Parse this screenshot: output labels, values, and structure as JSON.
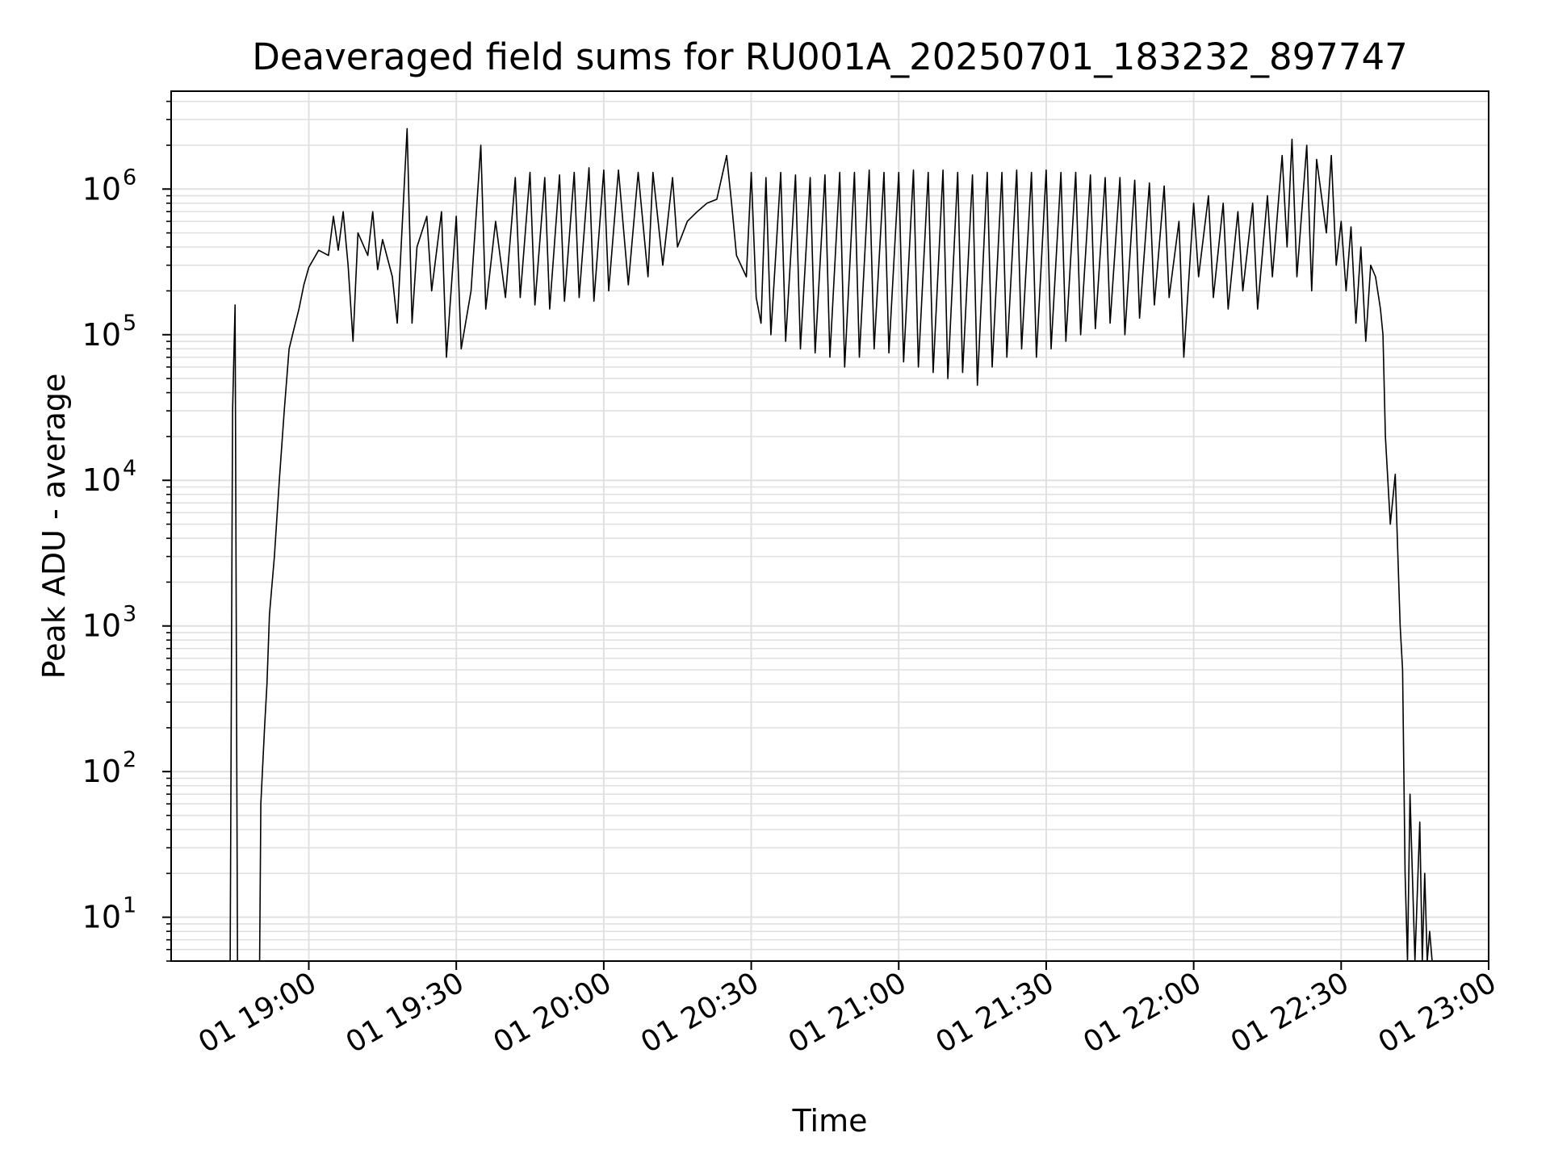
{
  "chart_data": {
    "type": "line",
    "title": "Deaveraged field sums for RU001A_20250701_183232_897747",
    "xlabel": "Time",
    "ylabel": "Peak ADU - average",
    "yscale": "log",
    "grid": true,
    "line_color": "#000000",
    "grid_color": "#e0e0e0",
    "xlim": [
      "18:32",
      "23:00"
    ],
    "ylim": [
      5,
      4700000
    ],
    "x_ticks": [
      {
        "t": "19:00",
        "label": "01 19:00"
      },
      {
        "t": "19:30",
        "label": "01 19:30"
      },
      {
        "t": "20:00",
        "label": "01 20:00"
      },
      {
        "t": "20:30",
        "label": "01 20:30"
      },
      {
        "t": "21:00",
        "label": "01 21:00"
      },
      {
        "t": "21:30",
        "label": "01 21:30"
      },
      {
        "t": "22:00",
        "label": "01 22:00"
      },
      {
        "t": "22:30",
        "label": "01 22:30"
      },
      {
        "t": "23:00",
        "label": "01 23:00"
      }
    ],
    "y_ticks": [
      {
        "value": 10,
        "base": "10",
        "exp": "1"
      },
      {
        "value": 100,
        "base": "10",
        "exp": "2"
      },
      {
        "value": 1000,
        "base": "10",
        "exp": "3"
      },
      {
        "value": 10000,
        "base": "10",
        "exp": "4"
      },
      {
        "value": 100000,
        "base": "10",
        "exp": "5"
      },
      {
        "value": 1000000,
        "base": "10",
        "exp": "6"
      }
    ],
    "series": [
      {
        "points": [
          [
            "18:44",
            5
          ],
          [
            "18:44:30",
            30000
          ],
          [
            "18:45",
            160000
          ],
          [
            "18:45:30",
            5
          ],
          [
            "18:50",
            5
          ],
          [
            "18:50:15",
            60
          ],
          [
            "18:51",
            200
          ],
          [
            "18:51:30",
            400
          ],
          [
            "18:52",
            1200
          ],
          [
            "18:53",
            3000
          ],
          [
            "18:54",
            10000
          ],
          [
            "18:55",
            30000
          ],
          [
            "18:56",
            80000
          ],
          [
            "18:57",
            110000
          ],
          [
            "18:58",
            150000
          ],
          [
            "18:59",
            220000
          ],
          [
            "19:00",
            290000
          ],
          [
            "19:02",
            380000
          ],
          [
            "19:04",
            350000
          ],
          [
            "19:05",
            650000
          ],
          [
            "19:06",
            380000
          ],
          [
            "19:07",
            700000
          ],
          [
            "19:08",
            300000
          ],
          [
            "19:09",
            90000
          ],
          [
            "19:10",
            500000
          ],
          [
            "19:12",
            350000
          ],
          [
            "19:13",
            700000
          ],
          [
            "19:14",
            280000
          ],
          [
            "19:15",
            450000
          ],
          [
            "19:17",
            250000
          ],
          [
            "19:18",
            120000
          ],
          [
            "19:20",
            2600000
          ],
          [
            "19:21",
            120000
          ],
          [
            "19:22",
            400000
          ],
          [
            "19:24",
            650000
          ],
          [
            "19:25",
            200000
          ],
          [
            "19:27",
            700000
          ],
          [
            "19:28",
            70000
          ],
          [
            "19:30",
            650000
          ],
          [
            "19:31",
            80000
          ],
          [
            "19:33",
            200000
          ],
          [
            "19:35",
            2000000
          ],
          [
            "19:36",
            150000
          ],
          [
            "19:38",
            600000
          ],
          [
            "19:40",
            180000
          ],
          [
            "19:42",
            1200000
          ],
          [
            "19:43",
            180000
          ],
          [
            "19:45",
            1300000
          ],
          [
            "19:46",
            160000
          ],
          [
            "19:48",
            1200000
          ],
          [
            "19:49",
            150000
          ],
          [
            "19:51",
            1250000
          ],
          [
            "19:52",
            170000
          ],
          [
            "19:54",
            1300000
          ],
          [
            "19:55",
            180000
          ],
          [
            "19:57",
            1400000
          ],
          [
            "19:58",
            170000
          ],
          [
            "20:00",
            1350000
          ],
          [
            "20:01",
            200000
          ],
          [
            "20:03",
            1350000
          ],
          [
            "20:05",
            220000
          ],
          [
            "20:07",
            1300000
          ],
          [
            "20:09",
            250000
          ],
          [
            "20:10",
            1300000
          ],
          [
            "20:12",
            300000
          ],
          [
            "20:14",
            1200000
          ],
          [
            "20:15",
            400000
          ],
          [
            "20:17",
            600000
          ],
          [
            "20:19",
            700000
          ],
          [
            "20:21",
            800000
          ],
          [
            "20:23",
            850000
          ],
          [
            "20:25",
            1700000
          ],
          [
            "20:26",
            800000
          ],
          [
            "20:27",
            350000
          ],
          [
            "20:29",
            250000
          ],
          [
            "20:30",
            1300000
          ],
          [
            "20:31",
            180000
          ],
          [
            "20:32",
            120000
          ],
          [
            "20:33",
            1200000
          ],
          [
            "20:34",
            100000
          ],
          [
            "20:36",
            1300000
          ],
          [
            "20:37",
            90000
          ],
          [
            "20:39",
            1250000
          ],
          [
            "20:40",
            80000
          ],
          [
            "20:42",
            1200000
          ],
          [
            "20:43",
            75000
          ],
          [
            "20:45",
            1250000
          ],
          [
            "20:46",
            70000
          ],
          [
            "20:48",
            1300000
          ],
          [
            "20:49",
            60000
          ],
          [
            "20:51",
            1300000
          ],
          [
            "20:52",
            70000
          ],
          [
            "20:54",
            1350000
          ],
          [
            "20:55",
            80000
          ],
          [
            "20:57",
            1300000
          ],
          [
            "20:58",
            75000
          ],
          [
            "21:00",
            1300000
          ],
          [
            "21:01",
            65000
          ],
          [
            "21:03",
            1350000
          ],
          [
            "21:04",
            60000
          ],
          [
            "21:06",
            1300000
          ],
          [
            "21:07",
            55000
          ],
          [
            "21:09",
            1350000
          ],
          [
            "21:10",
            50000
          ],
          [
            "21:12",
            1300000
          ],
          [
            "21:13",
            55000
          ],
          [
            "21:15",
            1250000
          ],
          [
            "21:16",
            45000
          ],
          [
            "21:18",
            1300000
          ],
          [
            "21:19",
            60000
          ],
          [
            "21:21",
            1300000
          ],
          [
            "21:22",
            70000
          ],
          [
            "21:24",
            1350000
          ],
          [
            "21:25",
            80000
          ],
          [
            "21:27",
            1300000
          ],
          [
            "21:28",
            70000
          ],
          [
            "21:30",
            1350000
          ],
          [
            "21:31",
            80000
          ],
          [
            "21:33",
            1300000
          ],
          [
            "21:34",
            90000
          ],
          [
            "21:36",
            1300000
          ],
          [
            "21:37",
            100000
          ],
          [
            "21:39",
            1250000
          ],
          [
            "21:40",
            110000
          ],
          [
            "21:42",
            1200000
          ],
          [
            "21:43",
            120000
          ],
          [
            "21:45",
            1200000
          ],
          [
            "21:46",
            100000
          ],
          [
            "21:48",
            1150000
          ],
          [
            "21:49",
            130000
          ],
          [
            "21:51",
            1100000
          ],
          [
            "21:52",
            160000
          ],
          [
            "21:54",
            1050000
          ],
          [
            "21:55",
            180000
          ],
          [
            "21:57",
            600000
          ],
          [
            "21:58",
            70000
          ],
          [
            "22:00",
            800000
          ],
          [
            "22:01",
            250000
          ],
          [
            "22:03",
            900000
          ],
          [
            "22:04",
            180000
          ],
          [
            "22:06",
            800000
          ],
          [
            "22:07",
            150000
          ],
          [
            "22:09",
            700000
          ],
          [
            "22:10",
            200000
          ],
          [
            "22:12",
            800000
          ],
          [
            "22:13",
            150000
          ],
          [
            "22:15",
            900000
          ],
          [
            "22:16",
            250000
          ],
          [
            "22:18",
            1700000
          ],
          [
            "22:19",
            400000
          ],
          [
            "22:20",
            2200000
          ],
          [
            "22:21",
            250000
          ],
          [
            "22:23",
            2000000
          ],
          [
            "22:24",
            200000
          ],
          [
            "22:25",
            1600000
          ],
          [
            "22:27",
            500000
          ],
          [
            "22:28",
            1700000
          ],
          [
            "22:29",
            300000
          ],
          [
            "22:30",
            600000
          ],
          [
            "22:31",
            200000
          ],
          [
            "22:32",
            550000
          ],
          [
            "22:33",
            120000
          ],
          [
            "22:34",
            400000
          ],
          [
            "22:35",
            90000
          ],
          [
            "22:36",
            300000
          ],
          [
            "22:37",
            250000
          ],
          [
            "22:38",
            150000
          ],
          [
            "22:38:30",
            100000
          ],
          [
            "22:39",
            20000
          ],
          [
            "22:40",
            5000
          ],
          [
            "22:41",
            11000
          ],
          [
            "22:42",
            1000
          ],
          [
            "22:42:30",
            500
          ],
          [
            "22:43",
            20
          ],
          [
            "22:43:30",
            5
          ],
          [
            "22:44",
            70
          ],
          [
            "22:45",
            5
          ],
          [
            "22:46",
            45
          ],
          [
            "22:46:30",
            5
          ],
          [
            "22:47",
            20
          ],
          [
            "22:47:30",
            5
          ],
          [
            "22:48",
            8
          ],
          [
            "22:48:30",
            5
          ]
        ]
      }
    ]
  }
}
